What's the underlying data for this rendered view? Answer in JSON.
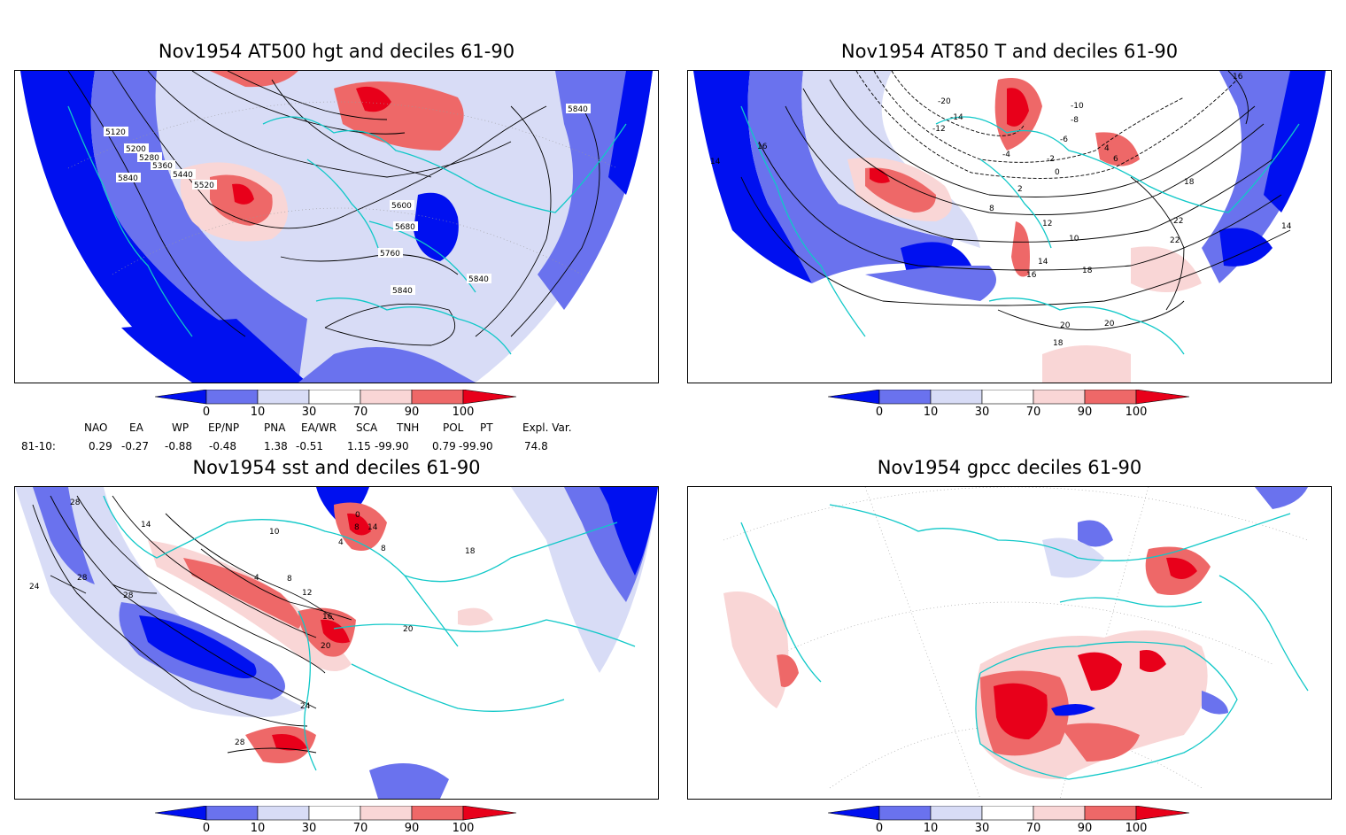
{
  "panels": [
    {
      "title": "Nov1954 AT500 hgt and deciles 61-90",
      "contour_labels": [
        "5120",
        "5200",
        "5280",
        "5360",
        "5440",
        "5520",
        "5600",
        "5680",
        "5760",
        "5840",
        "5840",
        "5840",
        "5840"
      ]
    },
    {
      "title": "Nov1954 AT850 T and deciles 61-90",
      "contour_labels": [
        "-20",
        "-14",
        "-12",
        "-10",
        "-8",
        "-6",
        "-4",
        "-2",
        "0",
        "2",
        "4",
        "6",
        "8",
        "10",
        "12",
        "14",
        "14",
        "14",
        "16",
        "16",
        "16",
        "18",
        "18",
        "18",
        "20",
        "20",
        "22",
        "22"
      ]
    },
    {
      "title": "Nov1954 sst and deciles 61-90",
      "contour_labels": [
        "28",
        "24",
        "28",
        "28",
        "14",
        "10",
        "4",
        "8",
        "12",
        "16",
        "20",
        "24",
        "28",
        "20",
        "0",
        "4",
        "8",
        "14",
        "8",
        "18"
      ]
    },
    {
      "title": "Nov1954 gpcc deciles 61-90",
      "contour_labels": []
    }
  ],
  "colorbar": {
    "ticks": [
      "0",
      "10",
      "30",
      "70",
      "90",
      "100"
    ],
    "colors": [
      "#0010f0",
      "#6a72ee",
      "#d8dcf6",
      "#ffffff",
      "#f9d6d6",
      "#ee6868",
      "#e8001a"
    ]
  },
  "indices": {
    "headers": [
      "NAO",
      "EA",
      "WP",
      "EP/NP",
      "PNA",
      "EA/WR",
      "SCA",
      "TNH",
      "POL",
      "PT",
      "Expl. Var."
    ],
    "row_label": "81-10:",
    "values": [
      "0.29",
      "-0.27",
      "-0.88",
      "-0.48",
      "1.38",
      "-0.51",
      "1.15",
      "-99.90",
      "0.79",
      "-99.90",
      "74.8"
    ]
  }
}
